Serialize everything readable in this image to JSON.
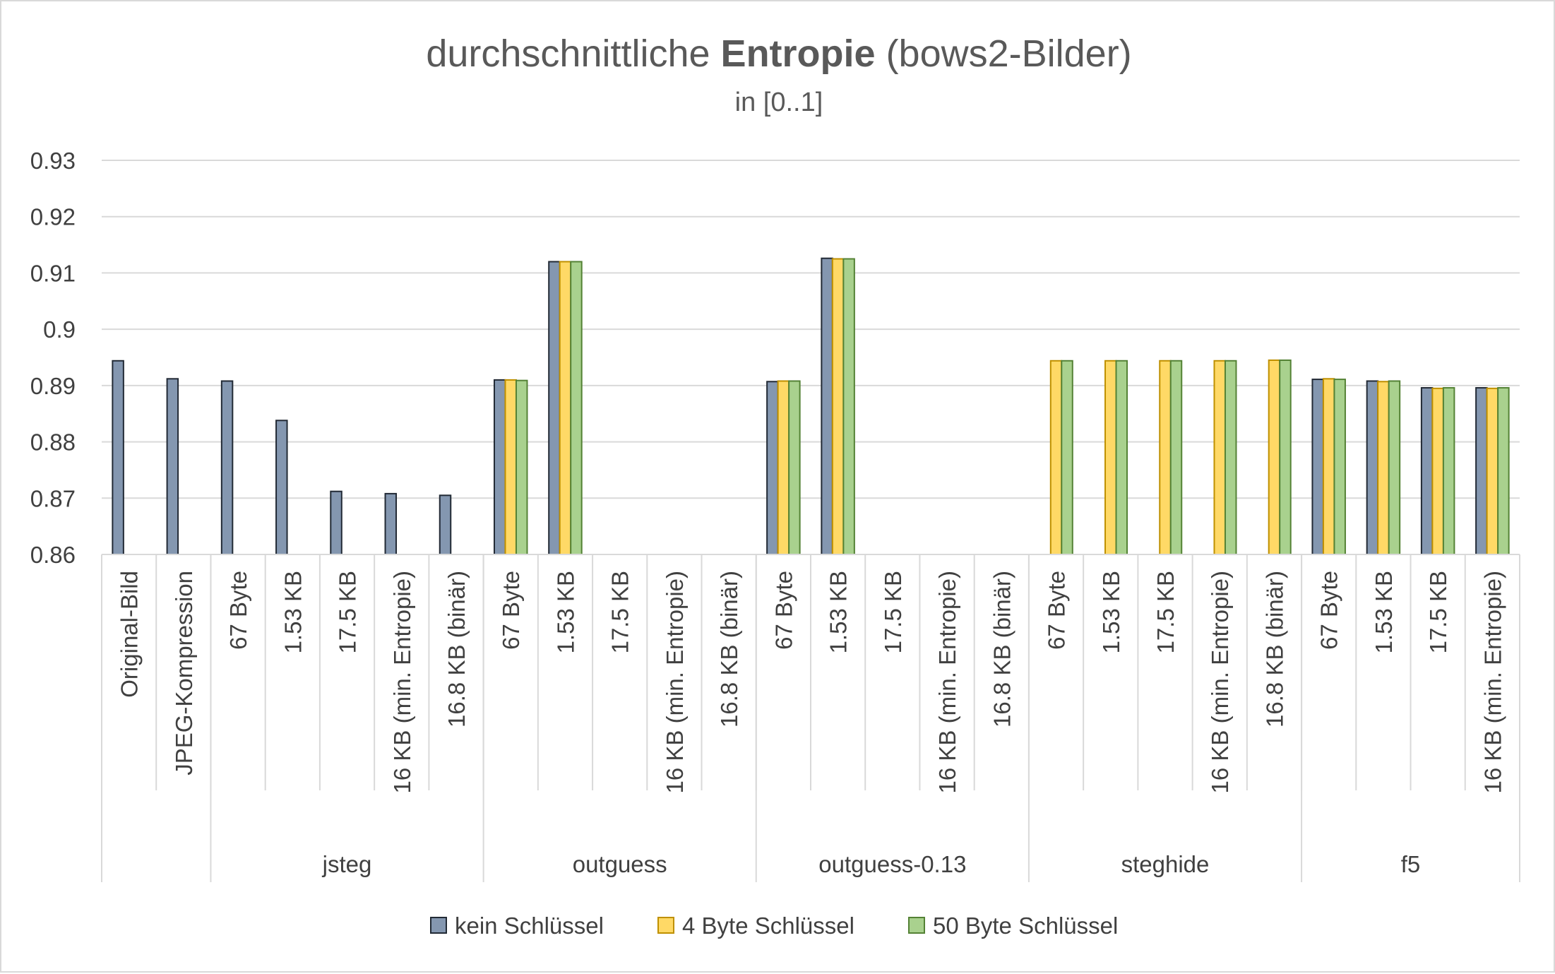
{
  "chart_data": {
    "type": "bar",
    "title": "durchschnittliche Entropie (bows2-Bilder)",
    "title_parts": {
      "pre": "durchschnittliche ",
      "bold": "Entropie",
      "post": " (bows2-Bilder)"
    },
    "subtitle": "in [0..1]",
    "ylim": [
      0.86,
      0.93
    ],
    "yticks": [
      0.86,
      0.87,
      0.88,
      0.89,
      0.9,
      0.91,
      0.92,
      0.93
    ],
    "ytick_labels": [
      "0.86",
      "0.87",
      "0.88",
      "0.89",
      "0.9",
      "0.91",
      "0.92",
      "0.93"
    ],
    "grid": true,
    "legend_position": "bottom",
    "groups": [
      {
        "name": "",
        "categories": [
          "Original-Bild",
          "JPEG-Kompression"
        ]
      },
      {
        "name": "jsteg",
        "categories": [
          "67 Byte",
          "1.53 KB",
          "17.5 KB",
          "16 KB (min. Entropie)",
          "16.8 KB (binär)"
        ]
      },
      {
        "name": "outguess",
        "categories": [
          "67 Byte",
          "1.53 KB",
          "17.5 KB",
          "16 KB (min. Entropie)",
          "16.8 KB (binär)"
        ]
      },
      {
        "name": "outguess-0.13",
        "categories": [
          "67 Byte",
          "1.53 KB",
          "17.5 KB",
          "16 KB (min. Entropie)",
          "16.8 KB (binär)"
        ]
      },
      {
        "name": "steghide",
        "categories": [
          "67 Byte",
          "1.53 KB",
          "17.5 KB",
          "16 KB (min. Entropie)",
          "16.8 KB (binär)"
        ]
      },
      {
        "name": "f5",
        "categories": [
          "67 Byte",
          "1.53 KB",
          "17.5 KB",
          "16 KB (min. Entropie)"
        ]
      }
    ],
    "series": [
      {
        "name": "kein Schlüssel",
        "color": "#8497b0",
        "values": [
          0.8944,
          0.8912,
          0.8908,
          0.8838,
          0.8712,
          0.8708,
          0.8705,
          0.891,
          0.912,
          null,
          null,
          null,
          0.8907,
          0.9126,
          null,
          null,
          null,
          null,
          null,
          null,
          null,
          null,
          0.8911,
          0.8908,
          0.8896,
          0.8896
        ]
      },
      {
        "name": "4 Byte Schlüssel",
        "color": "#ffd966",
        "values": [
          null,
          null,
          null,
          null,
          null,
          null,
          null,
          0.891,
          0.912,
          null,
          null,
          null,
          0.8908,
          0.9125,
          null,
          null,
          null,
          0.8944,
          0.8944,
          0.8944,
          0.8944,
          0.8945,
          0.8912,
          0.8907,
          0.8895,
          0.8895
        ]
      },
      {
        "name": "50 Byte Schlüssel",
        "color": "#a9d18e",
        "values": [
          null,
          null,
          null,
          null,
          null,
          null,
          null,
          0.8909,
          0.912,
          null,
          null,
          null,
          0.8908,
          0.9125,
          null,
          null,
          null,
          0.8944,
          0.8944,
          0.8944,
          0.8944,
          0.8945,
          0.8911,
          0.8908,
          0.8896,
          0.8896
        ]
      }
    ]
  }
}
